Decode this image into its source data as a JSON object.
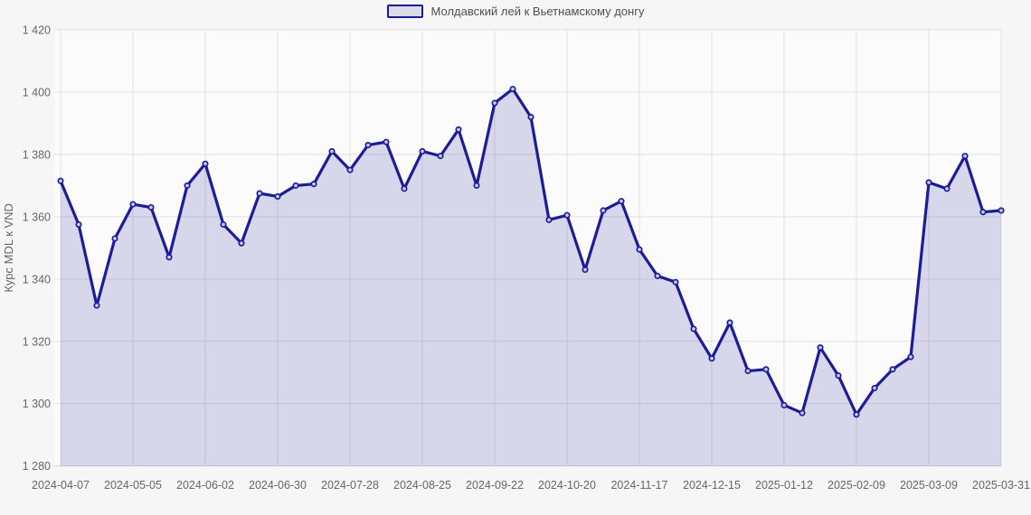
{
  "chart_data": {
    "type": "area",
    "title": "",
    "legend": "Молдавский лей к Вьетнамскому донгу",
    "ylabel": "Курс MDL к VND",
    "xlabel": "",
    "ylim": [
      1280,
      1420
    ],
    "ytick_step": 20,
    "ytick_labels": [
      "1 280",
      "1 300",
      "1 320",
      "1 340",
      "1 360",
      "1 380",
      "1 400",
      "1 420"
    ],
    "grid": true,
    "legend_position": "top-center",
    "x_ticks": [
      {
        "index": 0,
        "label": "2024-04-07"
      },
      {
        "index": 4,
        "label": "2024-05-05"
      },
      {
        "index": 8,
        "label": "2024-06-02"
      },
      {
        "index": 12,
        "label": "2024-06-30"
      },
      {
        "index": 16,
        "label": "2024-07-28"
      },
      {
        "index": 20,
        "label": "2024-08-25"
      },
      {
        "index": 24,
        "label": "2024-09-22"
      },
      {
        "index": 28,
        "label": "2024-10-20"
      },
      {
        "index": 32,
        "label": "2024-11-17"
      },
      {
        "index": 36,
        "label": "2024-12-15"
      },
      {
        "index": 40,
        "label": "2025-01-12"
      },
      {
        "index": 44,
        "label": "2025-02-09"
      },
      {
        "index": 48,
        "label": "2025-03-09"
      },
      {
        "index": 52,
        "label": "2025-03-31"
      }
    ],
    "dates": [
      "2024-04-07",
      "2024-04-14",
      "2024-04-21",
      "2024-04-28",
      "2024-05-05",
      "2024-05-12",
      "2024-05-19",
      "2024-05-26",
      "2024-06-02",
      "2024-06-09",
      "2024-06-16",
      "2024-06-23",
      "2024-06-30",
      "2024-07-07",
      "2024-07-14",
      "2024-07-21",
      "2024-07-28",
      "2024-08-04",
      "2024-08-11",
      "2024-08-18",
      "2024-08-25",
      "2024-09-01",
      "2024-09-08",
      "2024-09-15",
      "2024-09-22",
      "2024-09-29",
      "2024-10-06",
      "2024-10-13",
      "2024-10-20",
      "2024-10-27",
      "2024-11-03",
      "2024-11-10",
      "2024-11-17",
      "2024-11-24",
      "2024-12-01",
      "2024-12-08",
      "2024-12-15",
      "2024-12-22",
      "2024-12-29",
      "2025-01-05",
      "2025-01-12",
      "2025-01-19",
      "2025-01-26",
      "2025-02-02",
      "2025-02-09",
      "2025-02-16",
      "2025-02-23",
      "2025-03-02",
      "2025-03-09",
      "2025-03-16",
      "2025-03-23",
      "2025-03-30",
      "2025-03-31"
    ],
    "values": [
      1371.5,
      1357.5,
      1331.5,
      1353,
      1364,
      1363,
      1347,
      1370,
      1377,
      1357.5,
      1351.5,
      1367.5,
      1366.5,
      1370,
      1370.5,
      1381,
      1375,
      1383,
      1384,
      1369,
      1381,
      1379.5,
      1388,
      1370,
      1396.5,
      1401,
      1392,
      1359,
      1360.5,
      1343,
      1362,
      1365,
      1349.5,
      1341,
      1339,
      1324,
      1314.5,
      1326,
      1310.5,
      1311,
      1299.5,
      1297,
      1318,
      1309,
      1296.5,
      1305,
      1311,
      1315,
      1371,
      1369,
      1379.5,
      1361.5,
      1362
    ],
    "colors": {
      "line": "#1c1c96",
      "area_fill": "rgba(28,28,150,0.16)",
      "marker_fill": "#c8cae8",
      "legend_swatch_fill": "#d9daec",
      "grid": "#e1e1e3",
      "axis_line": "#cfcfd3",
      "text": "#666666",
      "legend_text": "#4e4e58",
      "plot_bg": "#fbfbfc",
      "page_bg": "#f6f6f7"
    }
  }
}
